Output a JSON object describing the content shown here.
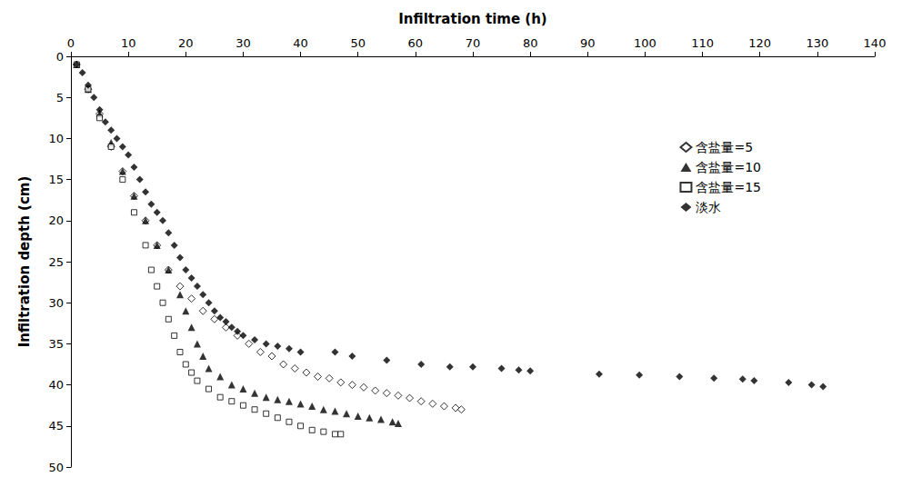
{
  "chart_data": {
    "type": "scatter",
    "x_label": "Infiltration time (h)",
    "y_label": "Infiltration depth (cm)",
    "xlim": [
      0,
      140
    ],
    "xticks": [
      0,
      10,
      20,
      30,
      40,
      50,
      60,
      70,
      80,
      90,
      100,
      110,
      120,
      130,
      140
    ],
    "ylim": [
      0,
      50
    ],
    "yticks": [
      0,
      5,
      10,
      15,
      20,
      25,
      30,
      35,
      40,
      45,
      50
    ],
    "grid": false,
    "legend": "right",
    "series": [
      {
        "name": "含盐量=5",
        "color": "#000000",
        "marker": "diamond-open",
        "x": [
          1,
          3,
          5,
          7,
          9,
          11,
          13,
          15,
          17,
          19,
          21,
          23,
          25,
          27,
          29,
          31,
          33,
          35,
          37,
          39,
          41,
          43,
          45,
          47,
          49,
          51,
          53,
          55,
          57,
          59,
          61,
          63,
          65,
          67,
          68
        ],
        "values": [
          1,
          4,
          7,
          11,
          14,
          17,
          20,
          23,
          26,
          28,
          29.5,
          31,
          32,
          33,
          34,
          35,
          36,
          36.5,
          37.5,
          38,
          38.5,
          39,
          39.2,
          39.7,
          40,
          40.3,
          40.7,
          41,
          41.3,
          41.6,
          42,
          42.3,
          42.6,
          42.8,
          43
        ]
      },
      {
        "name": "含盐量=10",
        "color": "#000000",
        "marker": "triangle",
        "x": [
          1,
          3,
          5,
          7,
          9,
          11,
          13,
          15,
          17,
          19,
          20,
          21,
          22,
          23,
          24,
          26,
          28,
          30,
          32,
          34,
          36,
          38,
          40,
          42,
          44,
          46,
          48,
          50,
          52,
          54,
          56,
          57
        ],
        "values": [
          1,
          4,
          7,
          10.5,
          14,
          17,
          20,
          23,
          26,
          29,
          31,
          33,
          35,
          36.5,
          38,
          39,
          40,
          40.5,
          41,
          41.5,
          41.8,
          42,
          42.3,
          42.6,
          43,
          43.2,
          43.5,
          43.8,
          44,
          44.2,
          44.5,
          44.7
        ]
      },
      {
        "name": "含盐量=15",
        "color": "#000000",
        "marker": "square-open",
        "x": [
          1,
          3,
          5,
          7,
          9,
          11,
          13,
          14,
          15,
          16,
          17,
          18,
          19,
          20,
          21,
          22,
          24,
          26,
          28,
          30,
          32,
          34,
          36,
          38,
          40,
          42,
          44,
          46,
          47
        ],
        "values": [
          1,
          4,
          7.5,
          11,
          15,
          19,
          23,
          26,
          28,
          30,
          32,
          34,
          36,
          37.5,
          38.5,
          39.5,
          40.5,
          41.5,
          42,
          42.5,
          43,
          43.5,
          44,
          44.5,
          45,
          45.5,
          45.7,
          46,
          46
        ]
      },
      {
        "name": "淡水",
        "color": "#000000",
        "marker": "diamond",
        "x": [
          1,
          2,
          3,
          4,
          5,
          6,
          7,
          8,
          9,
          10,
          11,
          12,
          13,
          14,
          15,
          16,
          17,
          18,
          19,
          20,
          21,
          22,
          23,
          24,
          25,
          26,
          27,
          28,
          29,
          30,
          32,
          34,
          36,
          38,
          40,
          46,
          49,
          55,
          61,
          66,
          70,
          75,
          78,
          80,
          92,
          99,
          106,
          112,
          117,
          119,
          125,
          129,
          131
        ],
        "values": [
          1,
          2,
          3.5,
          5,
          6.5,
          8,
          9,
          10,
          11,
          12,
          13.5,
          15,
          16.5,
          18,
          19,
          20,
          21.5,
          23,
          24.5,
          26,
          27,
          28,
          29,
          30,
          31,
          31.8,
          32.3,
          33,
          33.5,
          34,
          34.5,
          35,
          35.3,
          35.6,
          36,
          36,
          36.5,
          37,
          37.5,
          37.8,
          37.8,
          38,
          38.2,
          38.3,
          38.7,
          38.8,
          39,
          39.2,
          39.3,
          39.5,
          39.7,
          40,
          40.2
        ]
      }
    ]
  }
}
